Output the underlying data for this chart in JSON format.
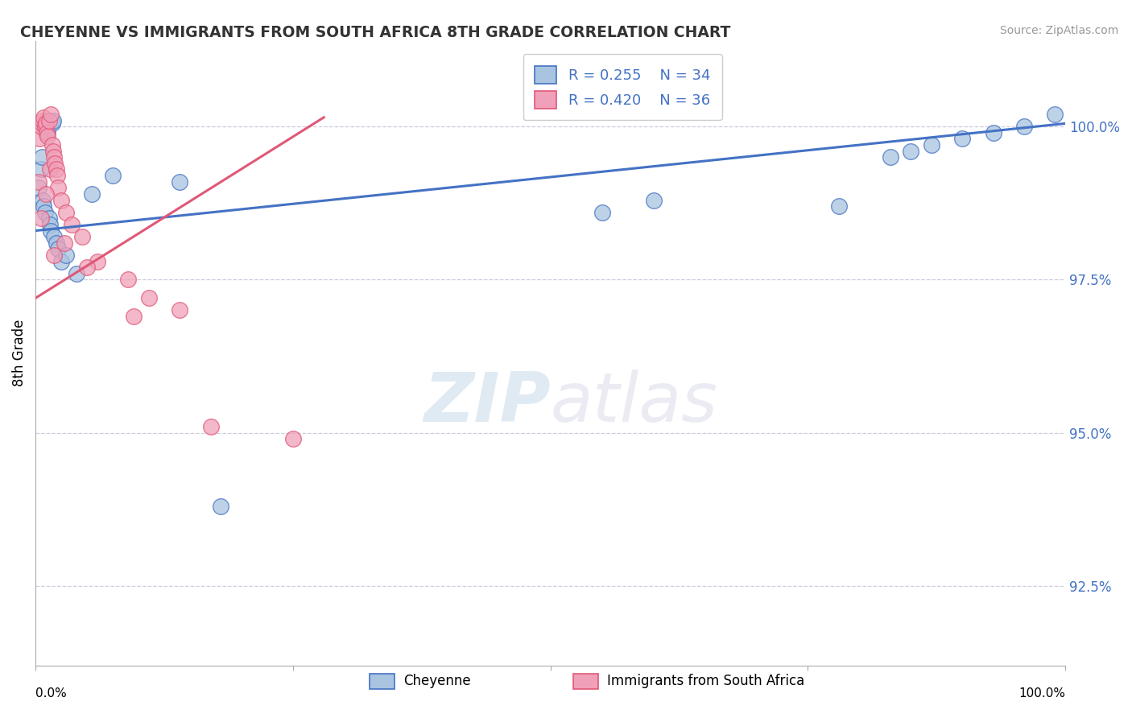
{
  "title": "CHEYENNE VS IMMIGRANTS FROM SOUTH AFRICA 8TH GRADE CORRELATION CHART",
  "source_text": "Source: ZipAtlas.com",
  "ylabel": "8th Grade",
  "y_tick_labels": [
    "92.5%",
    "95.0%",
    "97.5%",
    "100.0%"
  ],
  "y_tick_values": [
    92.5,
    95.0,
    97.5,
    100.0
  ],
  "legend_r1": "R = 0.255",
  "legend_n1": "N = 34",
  "legend_r2": "R = 0.420",
  "legend_n2": "N = 36",
  "color_blue": "#a8c4e0",
  "color_pink": "#f0a0b8",
  "color_blue_line": "#4472c4",
  "color_pink_line": "#e05878",
  "color_text_blue": "#4472c4",
  "color_grid": "#ccccdd",
  "xlim": [
    0.0,
    100.0
  ],
  "ylim": [
    91.2,
    101.4
  ],
  "blue_x": [
    0.3,
    0.5,
    0.6,
    0.7,
    0.8,
    0.9,
    1.0,
    1.1,
    1.2,
    1.3,
    1.4,
    1.5,
    1.6,
    1.7,
    1.8,
    2.0,
    2.2,
    2.5,
    3.0,
    4.0,
    5.5,
    7.5,
    14.0,
    18.0,
    55.0,
    60.0,
    78.0,
    83.0,
    85.0,
    87.0,
    90.0,
    93.0,
    96.0,
    99.0
  ],
  "blue_y": [
    99.0,
    99.3,
    99.5,
    98.8,
    98.7,
    98.6,
    100.1,
    100.0,
    99.9,
    98.5,
    98.4,
    98.3,
    100.05,
    100.1,
    98.2,
    98.1,
    98.0,
    97.8,
    97.9,
    97.6,
    98.9,
    99.2,
    99.1,
    93.8,
    98.6,
    98.8,
    98.7,
    99.5,
    99.6,
    99.7,
    99.8,
    99.9,
    100.0,
    100.2
  ],
  "pink_x": [
    0.3,
    0.4,
    0.5,
    0.6,
    0.7,
    0.8,
    0.9,
    1.0,
    1.1,
    1.2,
    1.3,
    1.4,
    1.5,
    1.6,
    1.7,
    1.8,
    1.9,
    2.0,
    2.1,
    2.2,
    2.5,
    3.0,
    3.5,
    4.5,
    6.0,
    9.0,
    11.0,
    14.0,
    0.5,
    1.0,
    1.8,
    2.8,
    5.0,
    9.5,
    17.0,
    25.0
  ],
  "pink_y": [
    99.1,
    99.8,
    100.0,
    100.05,
    100.1,
    100.15,
    100.0,
    100.05,
    99.9,
    99.85,
    100.1,
    99.3,
    100.2,
    99.7,
    99.6,
    99.5,
    99.4,
    99.3,
    99.2,
    99.0,
    98.8,
    98.6,
    98.4,
    98.2,
    97.8,
    97.5,
    97.2,
    97.0,
    98.5,
    98.9,
    97.9,
    98.1,
    97.7,
    96.9,
    95.1,
    94.9
  ],
  "watermark_zip": "ZIP",
  "watermark_atlas": "atlas",
  "blue_line_x": [
    0.0,
    100.0
  ],
  "blue_line_y_start": 98.3,
  "blue_line_y_end": 100.05,
  "pink_line_x": [
    0.0,
    28.0
  ],
  "pink_line_y_start": 97.2,
  "pink_line_y_end": 100.15
}
